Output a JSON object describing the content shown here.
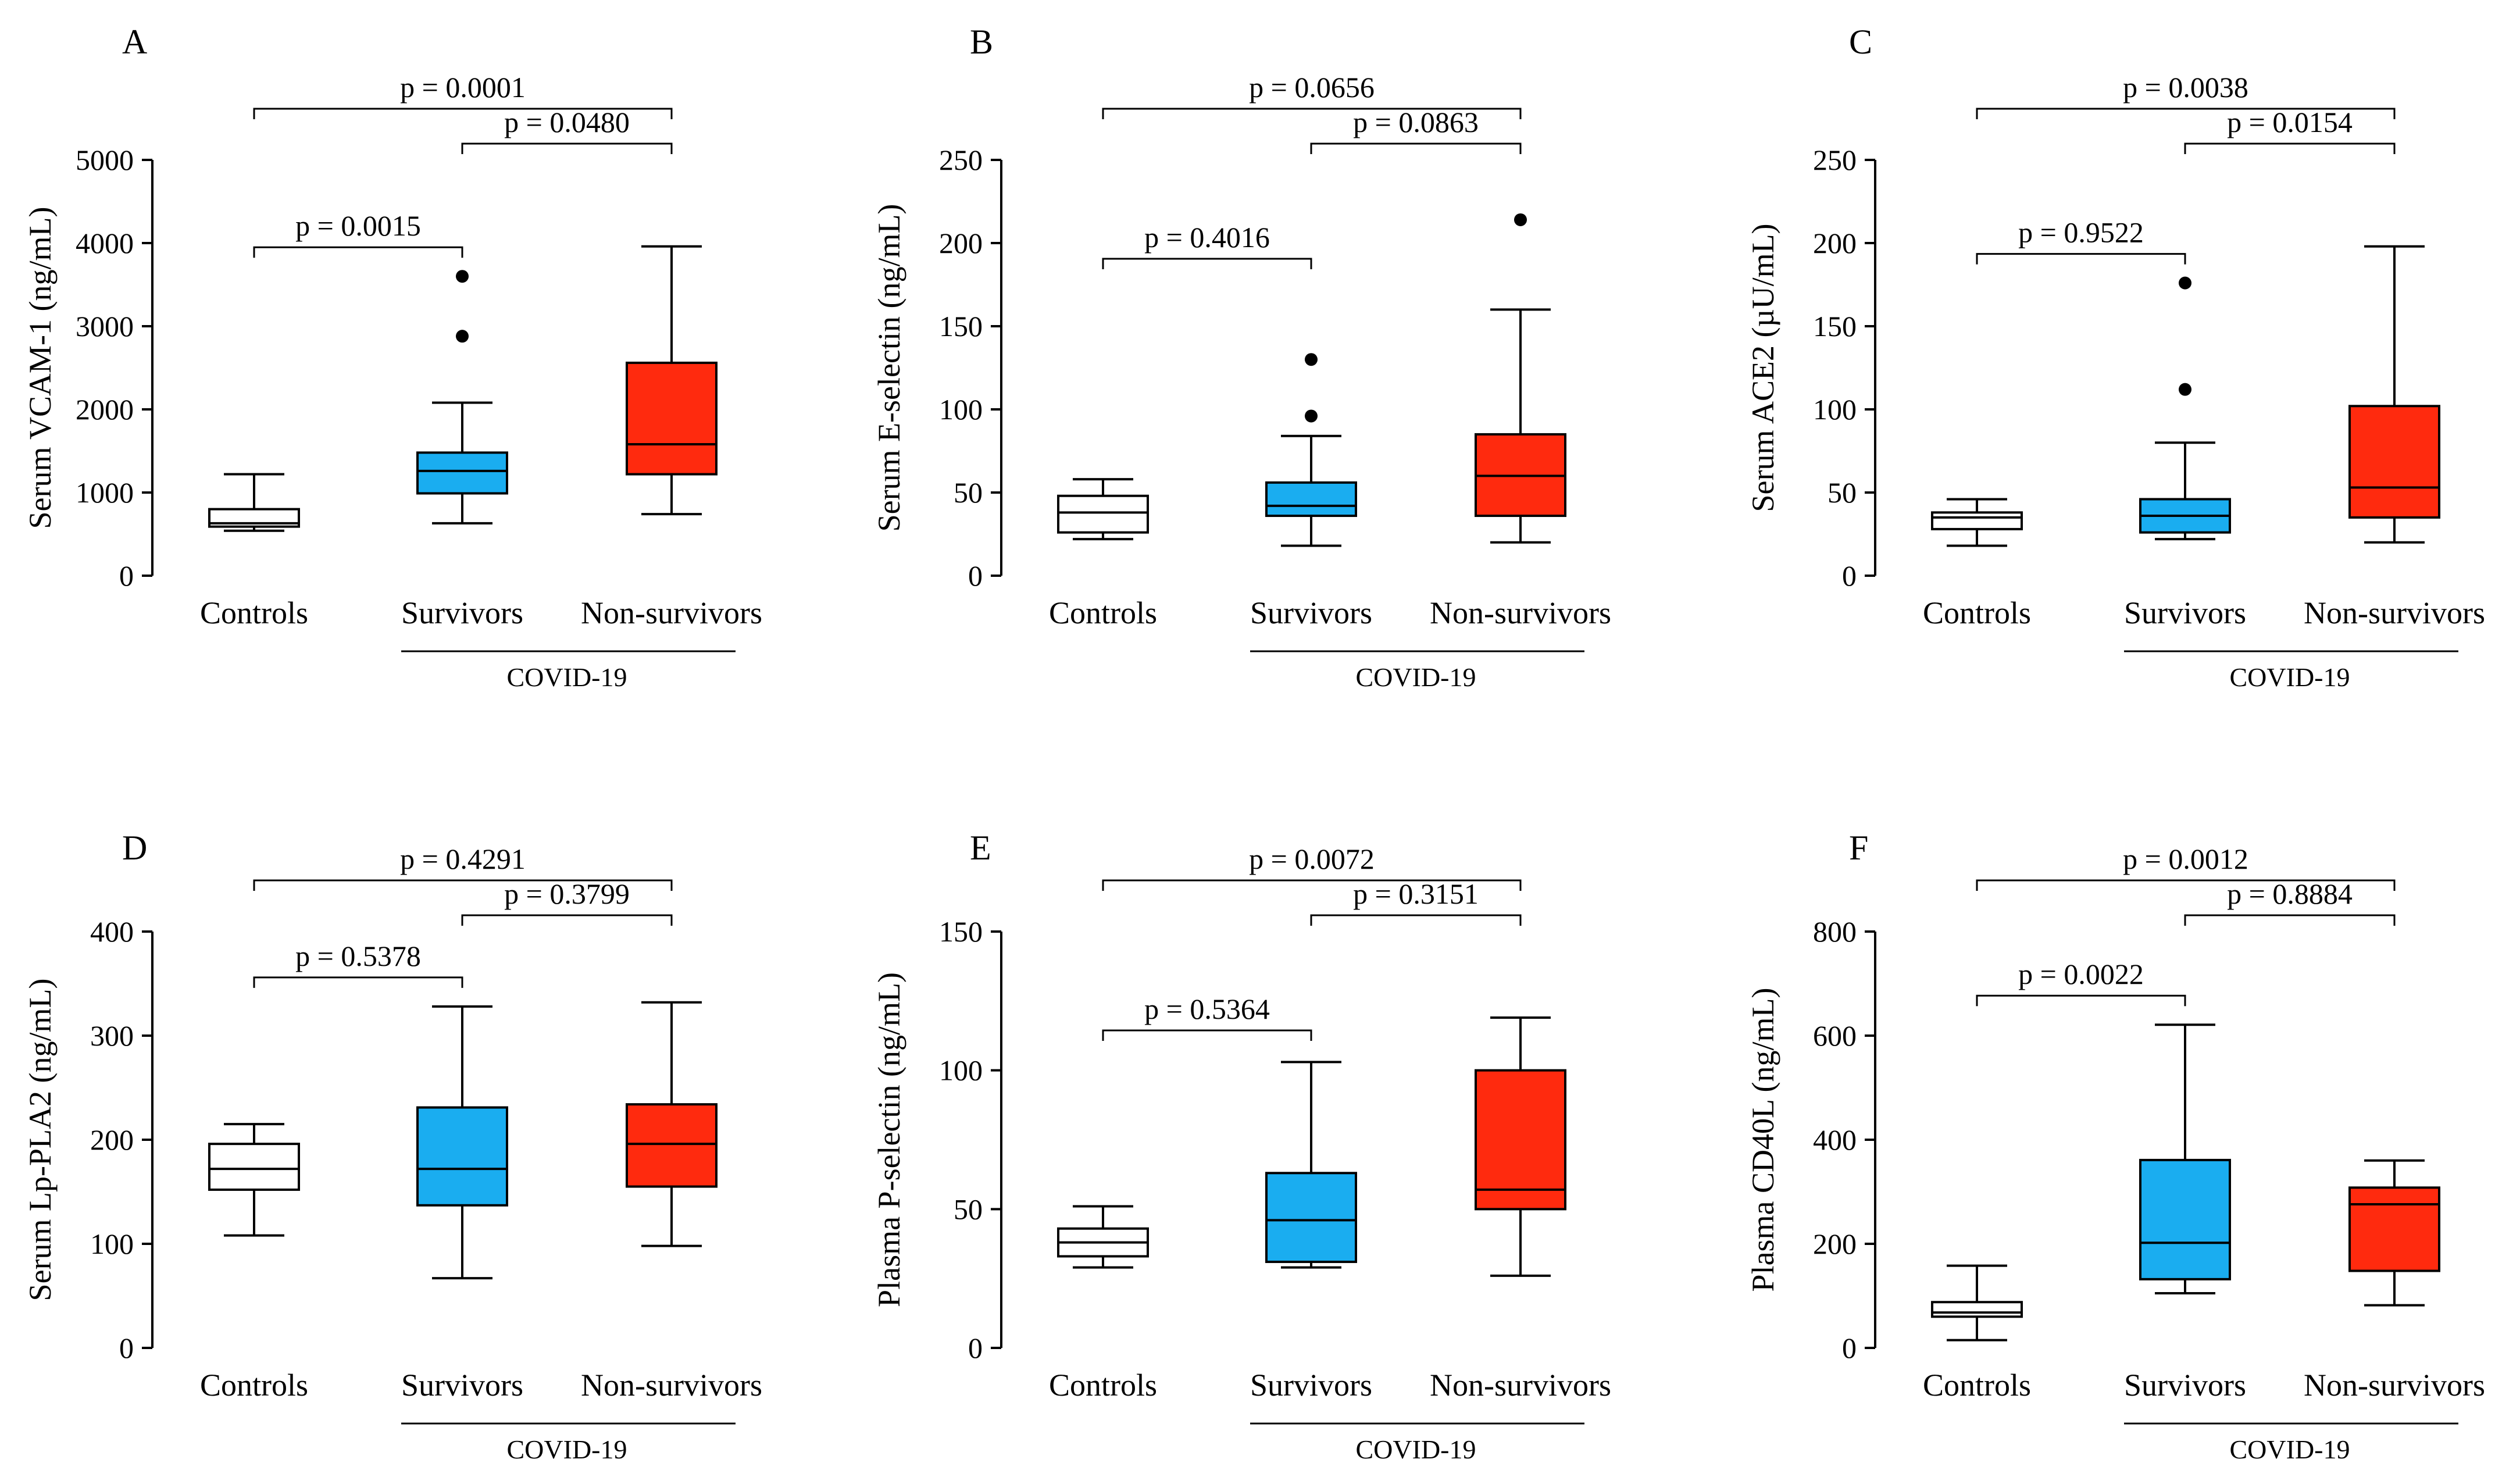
{
  "colors": {
    "controls": "#ffffff",
    "survivors": "#1aadf0",
    "nonsurvivors": "#ff2a0e",
    "stroke": "#000000"
  },
  "chart_data": [
    {
      "type": "boxplot",
      "panel": "A",
      "ylabel": "Serum VCAM-1 (ng/mL)",
      "ylim": [
        0,
        5000
      ],
      "yticks": [
        "0",
        "1000",
        "2000",
        "3000",
        "4000",
        "5000"
      ],
      "categories": [
        "Controls",
        "Survivors",
        "Non-survivors"
      ],
      "group_label": "COVID-19",
      "boxes": [
        {
          "name": "Controls",
          "whisker_low": 540,
          "q1": 590,
          "median": 630,
          "q3": 800,
          "whisker_high": 1220,
          "outliers": []
        },
        {
          "name": "Survivors",
          "whisker_low": 630,
          "q1": 990,
          "median": 1260,
          "q3": 1480,
          "whisker_high": 2080,
          "outliers": [
            2880,
            3600
          ]
        },
        {
          "name": "Non-survivors",
          "whisker_low": 740,
          "q1": 1220,
          "median": 1580,
          "q3": 2560,
          "whisker_high": 3960,
          "outliers": []
        }
      ],
      "comparisons": [
        {
          "pair": [
            0,
            2
          ],
          "label": "p = 0.0001",
          "level": 0
        },
        {
          "pair": [
            1,
            2
          ],
          "label": "p = 0.0480",
          "level": 1
        },
        {
          "pair": [
            0,
            1
          ],
          "label": "p = 0.0015",
          "level": 2
        }
      ]
    },
    {
      "type": "boxplot",
      "panel": "B",
      "ylabel": "Serum E-selectin (ng/mL)",
      "ylim": [
        0,
        250
      ],
      "yticks": [
        "0",
        "50",
        "100",
        "150",
        "200",
        "250"
      ],
      "categories": [
        "Controls",
        "Survivors",
        "Non-survivors"
      ],
      "group_label": "COVID-19",
      "boxes": [
        {
          "name": "Controls",
          "whisker_low": 22,
          "q1": 26,
          "median": 38,
          "q3": 48,
          "whisker_high": 58,
          "outliers": []
        },
        {
          "name": "Survivors",
          "whisker_low": 18,
          "q1": 36,
          "median": 42,
          "q3": 56,
          "whisker_high": 84,
          "outliers": [
            96,
            130
          ]
        },
        {
          "name": "Non-survivors",
          "whisker_low": 20,
          "q1": 36,
          "median": 60,
          "q3": 85,
          "whisker_high": 160,
          "outliers": [
            214
          ]
        }
      ],
      "comparisons": [
        {
          "pair": [
            0,
            2
          ],
          "label": "p = 0.0656",
          "level": 0
        },
        {
          "pair": [
            1,
            2
          ],
          "label": "p = 0.0863",
          "level": 1
        },
        {
          "pair": [
            0,
            1
          ],
          "label": "p = 0.4016",
          "level": 2
        }
      ]
    },
    {
      "type": "boxplot",
      "panel": "C",
      "ylabel": "Serum ACE2 (µU/mL)",
      "ylim": [
        0,
        250
      ],
      "yticks": [
        "0",
        "50",
        "100",
        "150",
        "200",
        "250"
      ],
      "categories": [
        "Controls",
        "Survivors",
        "Non-survivors"
      ],
      "group_label": "COVID-19",
      "boxes": [
        {
          "name": "Controls",
          "whisker_low": 18,
          "q1": 28,
          "median": 35,
          "q3": 38,
          "whisker_high": 46,
          "outliers": []
        },
        {
          "name": "Survivors",
          "whisker_low": 22,
          "q1": 26,
          "median": 36,
          "q3": 46,
          "whisker_high": 80,
          "outliers": [
            112,
            176
          ]
        },
        {
          "name": "Non-survivors",
          "whisker_low": 20,
          "q1": 35,
          "median": 53,
          "q3": 102,
          "whisker_high": 198,
          "outliers": []
        }
      ],
      "comparisons": [
        {
          "pair": [
            0,
            2
          ],
          "label": "p = 0.0038",
          "level": 0
        },
        {
          "pair": [
            1,
            2
          ],
          "label": "p = 0.0154",
          "level": 1
        },
        {
          "pair": [
            0,
            1
          ],
          "label": "p = 0.9522",
          "level": 2
        }
      ]
    },
    {
      "type": "boxplot",
      "panel": "D",
      "ylabel": "Serum Lp-PLA2 (ng/mL)",
      "ylim": [
        0,
        400
      ],
      "yticks": [
        "0",
        "100",
        "200",
        "300",
        "400"
      ],
      "categories": [
        "Controls",
        "Survivors",
        "Non-survivors"
      ],
      "group_label": "COVID-19",
      "boxes": [
        {
          "name": "Controls",
          "whisker_low": 108,
          "q1": 152,
          "median": 172,
          "q3": 196,
          "whisker_high": 215,
          "outliers": []
        },
        {
          "name": "Survivors",
          "whisker_low": 67,
          "q1": 137,
          "median": 172,
          "q3": 231,
          "whisker_high": 328,
          "outliers": []
        },
        {
          "name": "Non-survivors",
          "whisker_low": 98,
          "q1": 155,
          "median": 196,
          "q3": 234,
          "whisker_high": 332,
          "outliers": []
        }
      ],
      "comparisons": [
        {
          "pair": [
            0,
            2
          ],
          "label": "p = 0.4291",
          "level": 0
        },
        {
          "pair": [
            1,
            2
          ],
          "label": "p = 0.3799",
          "level": 1
        },
        {
          "pair": [
            0,
            1
          ],
          "label": "p = 0.5378",
          "level": 2
        }
      ]
    },
    {
      "type": "boxplot",
      "panel": "E",
      "ylabel": "Plasma P-selectin (ng/mL)",
      "ylim": [
        0,
        150
      ],
      "yticks": [
        "0",
        "50",
        "100",
        "150"
      ],
      "categories": [
        "Controls",
        "Survivors",
        "Non-survivors"
      ],
      "group_label": "COVID-19",
      "boxes": [
        {
          "name": "Controls",
          "whisker_low": 29,
          "q1": 33,
          "median": 38,
          "q3": 43,
          "whisker_high": 51,
          "outliers": []
        },
        {
          "name": "Survivors",
          "whisker_low": 29,
          "q1": 31,
          "median": 46,
          "q3": 63,
          "whisker_high": 103,
          "outliers": []
        },
        {
          "name": "Non-survivors",
          "whisker_low": 26,
          "q1": 50,
          "median": 57,
          "q3": 100,
          "whisker_high": 119,
          "outliers": []
        }
      ],
      "comparisons": [
        {
          "pair": [
            0,
            2
          ],
          "label": "p = 0.0072",
          "level": 0
        },
        {
          "pair": [
            1,
            2
          ],
          "label": "p = 0.3151",
          "level": 1
        },
        {
          "pair": [
            0,
            1
          ],
          "label": "p = 0.5364",
          "level": 2
        }
      ]
    },
    {
      "type": "boxplot",
      "panel": "F",
      "ylabel": "Plasma CD40L (ng/mL)",
      "ylim": [
        0,
        800
      ],
      "yticks": [
        "0",
        "200",
        "400",
        "600",
        "800"
      ],
      "categories": [
        "Controls",
        "Survivors",
        "Non-survivors"
      ],
      "group_label": "COVID-19",
      "boxes": [
        {
          "name": "Controls",
          "whisker_low": 15,
          "q1": 60,
          "median": 68,
          "q3": 88,
          "whisker_high": 158,
          "outliers": []
        },
        {
          "name": "Survivors",
          "whisker_low": 105,
          "q1": 132,
          "median": 202,
          "q3": 361,
          "whisker_high": 621,
          "outliers": []
        },
        {
          "name": "Non-survivors",
          "whisker_low": 82,
          "q1": 148,
          "median": 276,
          "q3": 308,
          "whisker_high": 360,
          "outliers": []
        }
      ],
      "comparisons": [
        {
          "pair": [
            0,
            2
          ],
          "label": "p = 0.0012",
          "level": 0
        },
        {
          "pair": [
            1,
            2
          ],
          "label": "p = 0.8884",
          "level": 1
        },
        {
          "pair": [
            0,
            1
          ],
          "label": "p = 0.0022",
          "level": 2
        }
      ]
    }
  ]
}
